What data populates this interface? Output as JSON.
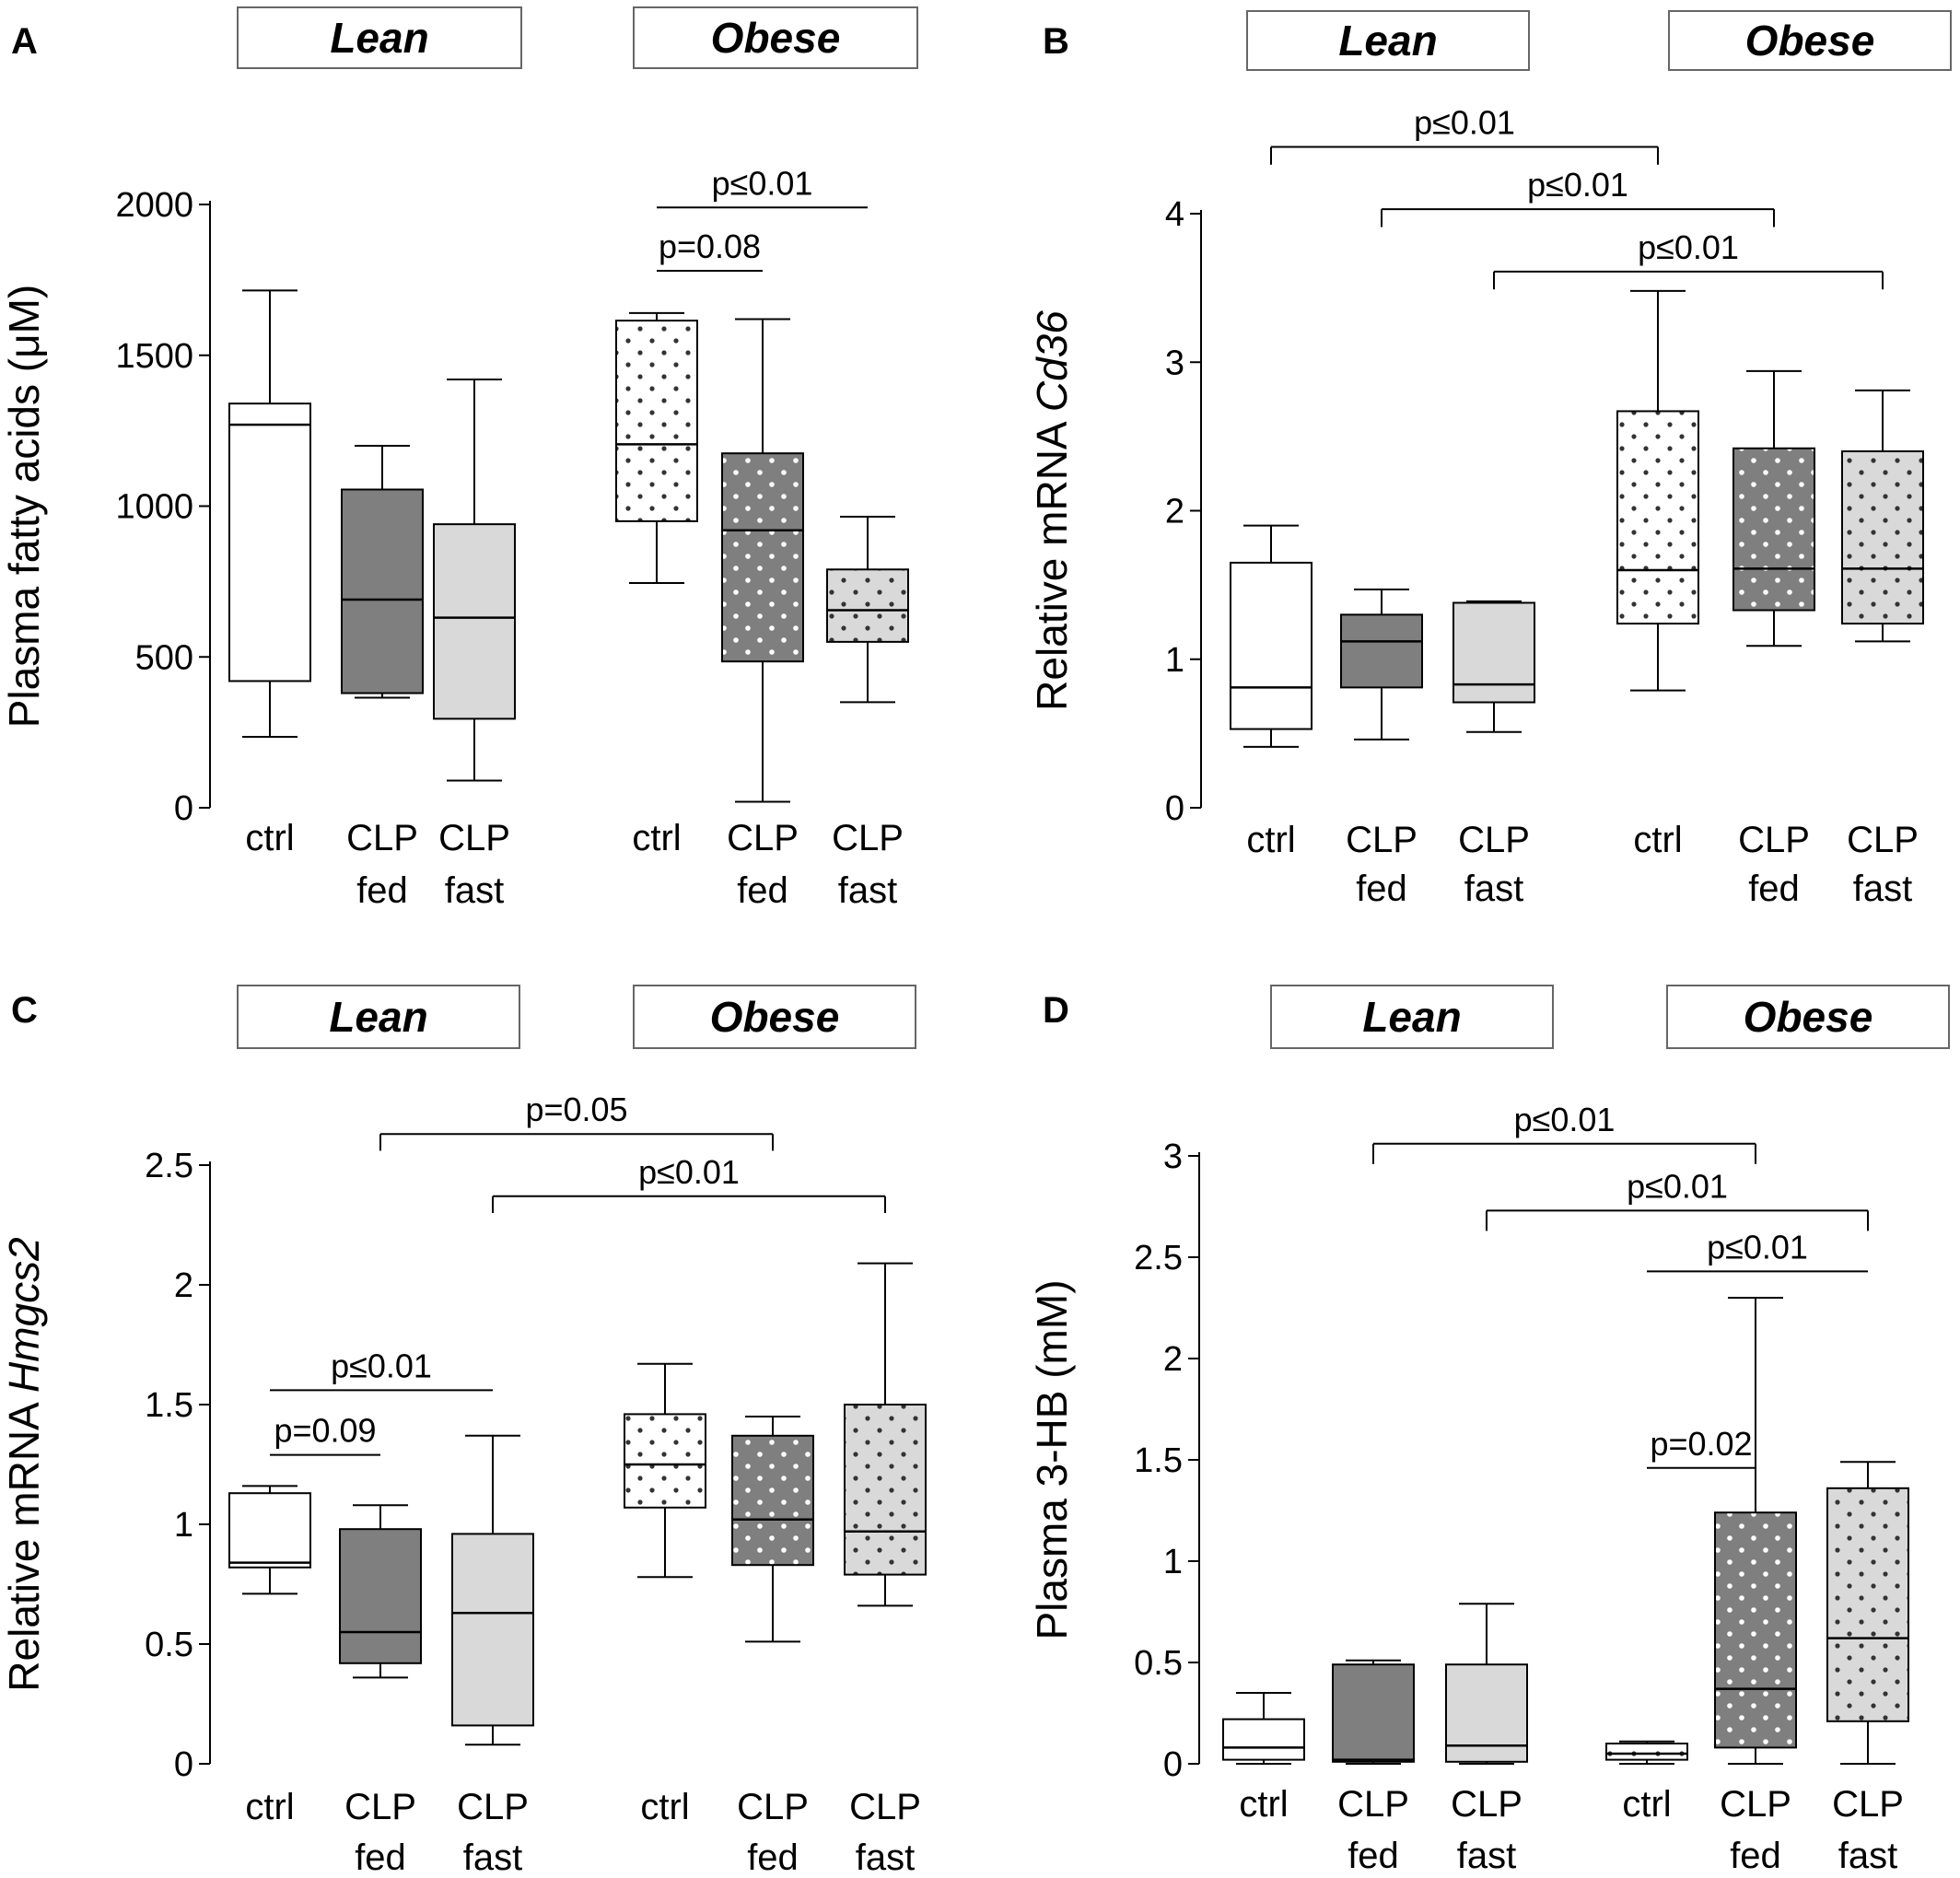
{
  "chart_data": [
    {
      "type": "box",
      "panel": "A",
      "groups": [
        "Lean",
        "Obese"
      ],
      "categories": [
        "ctrl",
        "CLP fed",
        "CLP fast",
        "ctrl",
        "CLP fed",
        "CLP fast"
      ],
      "category_lines": [
        [
          "ctrl"
        ],
        [
          "CLP",
          "fed"
        ],
        [
          "CLP",
          "fast"
        ],
        [
          "ctrl"
        ],
        [
          "CLP",
          "fed"
        ],
        [
          "CLP",
          "fast"
        ]
      ],
      "ylabel_parts": [
        "Plasma fatty acids (μM)"
      ],
      "ylim": [
        0,
        2000
      ],
      "yticks": [
        0,
        500,
        1000,
        1500,
        2000
      ],
      "ytick_labels": [
        "0",
        "500",
        "1000",
        "1500",
        "2000"
      ],
      "boxes": [
        {
          "category": "ctrl",
          "group": "Lean",
          "fill": "white",
          "min": 235,
          "q1": 420,
          "median": 1270,
          "q3": 1340,
          "max": 1715
        },
        {
          "category": "CLP fed",
          "group": "Lean",
          "fill": "dark",
          "min": 365,
          "q1": 380,
          "median": 690,
          "q3": 1055,
          "max": 1200
        },
        {
          "category": "CLP fast",
          "group": "Lean",
          "fill": "light",
          "min": 90,
          "q1": 295,
          "median": 630,
          "q3": 940,
          "max": 1420
        },
        {
          "category": "ctrl",
          "group": "Obese",
          "fill": "white-dots",
          "min": 745,
          "q1": 950,
          "median": 1205,
          "q3": 1615,
          "max": 1640
        },
        {
          "category": "CLP fed",
          "group": "Obese",
          "fill": "dark-dots",
          "min": 20,
          "q1": 485,
          "median": 920,
          "q3": 1175,
          "max": 1620
        },
        {
          "category": "CLP fast",
          "group": "Obese",
          "fill": "light-dots",
          "min": 350,
          "q1": 550,
          "median": 655,
          "q3": 790,
          "max": 965
        }
      ],
      "significance": [
        {
          "from": 3,
          "to": 4,
          "label": "p=0.08",
          "y": 1780
        },
        {
          "from": 3,
          "to": 5,
          "label": "p≤0.01",
          "y": 1990
        }
      ]
    },
    {
      "type": "box",
      "panel": "B",
      "groups": [
        "Lean",
        "Obese"
      ],
      "categories": [
        "ctrl",
        "CLP fed",
        "CLP fast",
        "ctrl",
        "CLP fed",
        "CLP fast"
      ],
      "category_lines": [
        [
          "ctrl"
        ],
        [
          "CLP",
          "fed"
        ],
        [
          "CLP",
          "fast"
        ],
        [
          "ctrl"
        ],
        [
          "CLP",
          "fed"
        ],
        [
          "CLP",
          "fast"
        ]
      ],
      "ylabel_parts": [
        "Relative mRNA ",
        "Cd36"
      ],
      "ylim": [
        0,
        4
      ],
      "yticks": [
        0,
        1,
        2,
        3,
        4
      ],
      "ytick_labels": [
        "0",
        "1",
        "2",
        "3",
        "4"
      ],
      "boxes": [
        {
          "category": "ctrl",
          "group": "Lean",
          "fill": "white",
          "min": 0.41,
          "q1": 0.53,
          "median": 0.81,
          "q3": 1.65,
          "max": 1.9
        },
        {
          "category": "CLP fed",
          "group": "Lean",
          "fill": "dark",
          "min": 0.46,
          "q1": 0.81,
          "median": 1.12,
          "q3": 1.3,
          "max": 1.47
        },
        {
          "category": "CLP fast",
          "group": "Lean",
          "fill": "light",
          "min": 0.51,
          "q1": 0.71,
          "median": 0.83,
          "q3": 1.38,
          "max": 1.39
        },
        {
          "category": "ctrl",
          "group": "Obese",
          "fill": "white-dots",
          "min": 0.79,
          "q1": 1.24,
          "median": 1.6,
          "q3": 2.67,
          "max": 3.48
        },
        {
          "category": "CLP fed",
          "group": "Obese",
          "fill": "dark-dots",
          "min": 1.09,
          "q1": 1.33,
          "median": 1.61,
          "q3": 2.42,
          "max": 2.94
        },
        {
          "category": "CLP fast",
          "group": "Obese",
          "fill": "light-dots",
          "min": 1.12,
          "q1": 1.24,
          "median": 1.61,
          "q3": 2.4,
          "max": 2.81
        }
      ],
      "significance": [
        {
          "from": 0,
          "to": 3,
          "label": "p≤0.01",
          "y": 4.45,
          "drop": 0.12
        },
        {
          "from": 1,
          "to": 4,
          "label": "p≤0.01",
          "y": 4.03,
          "drop": 0.12
        },
        {
          "from": 2,
          "to": 5,
          "label": "p≤0.01",
          "y": 3.61,
          "drop": 0.12
        }
      ]
    },
    {
      "type": "box",
      "panel": "C",
      "groups": [
        "Lean",
        "Obese"
      ],
      "categories": [
        "ctrl",
        "CLP fed",
        "CLP fast",
        "ctrl",
        "CLP fed",
        "CLP fast"
      ],
      "category_lines": [
        [
          "ctrl"
        ],
        [
          "CLP",
          "fed"
        ],
        [
          "CLP",
          "fast"
        ],
        [
          "ctrl"
        ],
        [
          "CLP",
          "fed"
        ],
        [
          "CLP",
          "fast"
        ]
      ],
      "ylabel_parts": [
        "Relative mRNA ",
        "Hmgcs2"
      ],
      "ylim": [
        0,
        2.5
      ],
      "yticks": [
        0,
        0.5,
        1,
        1.5,
        2,
        2.5
      ],
      "ytick_labels": [
        "0",
        "0.5",
        "1",
        "1.5",
        "2",
        "2.5"
      ],
      "boxes": [
        {
          "category": "ctrl",
          "group": "Lean",
          "fill": "white",
          "min": 0.71,
          "q1": 0.82,
          "median": 0.84,
          "q3": 1.13,
          "max": 1.16
        },
        {
          "category": "CLP fed",
          "group": "Lean",
          "fill": "dark",
          "min": 0.36,
          "q1": 0.42,
          "median": 0.55,
          "q3": 0.98,
          "max": 1.08
        },
        {
          "category": "CLP fast",
          "group": "Lean",
          "fill": "light",
          "min": 0.08,
          "q1": 0.16,
          "median": 0.63,
          "q3": 0.96,
          "max": 1.37
        },
        {
          "category": "ctrl",
          "group": "Obese",
          "fill": "white-dots",
          "min": 0.78,
          "q1": 1.07,
          "median": 1.25,
          "q3": 1.46,
          "max": 1.67
        },
        {
          "category": "CLP fed",
          "group": "Obese",
          "fill": "dark-dots",
          "min": 0.51,
          "q1": 0.83,
          "median": 1.02,
          "q3": 1.37,
          "max": 1.45
        },
        {
          "category": "CLP fast",
          "group": "Obese",
          "fill": "light-dots",
          "min": 0.66,
          "q1": 0.79,
          "median": 0.97,
          "q3": 1.5,
          "max": 2.09
        }
      ],
      "significance": [
        {
          "from": 0,
          "to": 1,
          "label": "p=0.09",
          "y": 1.29
        },
        {
          "from": 0,
          "to": 2,
          "label": "p≤0.01",
          "y": 1.56
        },
        {
          "from": 1,
          "to": 4,
          "label": "p=0.05",
          "y": 2.63,
          "drop": 0.07
        },
        {
          "from": 2,
          "to": 5,
          "label": "p≤0.01",
          "y": 2.37,
          "drop": 0.07
        }
      ]
    },
    {
      "type": "box",
      "panel": "D",
      "groups": [
        "Lean",
        "Obese"
      ],
      "categories": [
        "ctrl",
        "CLP fed",
        "CLP fast",
        "ctrl",
        "CLP fed",
        "CLP fast"
      ],
      "category_lines": [
        [
          "ctrl"
        ],
        [
          "CLP",
          "fed"
        ],
        [
          "CLP",
          "fast"
        ],
        [
          "ctrl"
        ],
        [
          "CLP",
          "fed"
        ],
        [
          "CLP",
          "fast"
        ]
      ],
      "ylabel_parts": [
        "Plasma 3-HB (mM)"
      ],
      "ylim": [
        0,
        3
      ],
      "yticks": [
        0,
        0.5,
        1,
        1.5,
        2,
        2.5,
        3
      ],
      "ytick_labels": [
        "0",
        "0.5",
        "1",
        "1.5",
        "2",
        "2.5",
        "3"
      ],
      "boxes": [
        {
          "category": "ctrl",
          "group": "Lean",
          "fill": "white",
          "min": 0.0,
          "q1": 0.02,
          "median": 0.08,
          "q3": 0.22,
          "max": 0.35
        },
        {
          "category": "CLP fed",
          "group": "Lean",
          "fill": "dark",
          "min": 0.0,
          "q1": 0.01,
          "median": 0.02,
          "q3": 0.49,
          "max": 0.51
        },
        {
          "category": "CLP fast",
          "group": "Lean",
          "fill": "light",
          "min": 0.0,
          "q1": 0.01,
          "median": 0.09,
          "q3": 0.49,
          "max": 0.79
        },
        {
          "category": "ctrl",
          "group": "Obese",
          "fill": "white-dots",
          "min": 0.0,
          "q1": 0.02,
          "median": 0.05,
          "q3": 0.1,
          "max": 0.11
        },
        {
          "category": "CLP fed",
          "group": "Obese",
          "fill": "dark-dots",
          "min": 0.0,
          "q1": 0.08,
          "median": 0.37,
          "q3": 1.24,
          "max": 2.3
        },
        {
          "category": "CLP fast",
          "group": "Obese",
          "fill": "light-dots",
          "min": 0.0,
          "q1": 0.21,
          "median": 0.62,
          "q3": 1.36,
          "max": 1.49
        }
      ],
      "significance": [
        {
          "from": 3,
          "to": 4,
          "label": "p=0.02",
          "y": 1.46
        },
        {
          "from": 3,
          "to": 5,
          "label": "p≤0.01",
          "y": 2.43
        },
        {
          "from": 2,
          "to": 5,
          "label": "p≤0.01",
          "y": 2.73,
          "drop": 0.1
        },
        {
          "from": 1,
          "to": 4,
          "label": "p≤0.01",
          "y": 3.06,
          "drop": 0.1
        }
      ]
    }
  ],
  "colors": {
    "white": "#ffffff",
    "dark": "#7f7f7f",
    "light": "#d9d9d9",
    "dots_on_white": "#333333",
    "dots_on_dark": "#ffffff",
    "dots_on_light": "#333333"
  }
}
